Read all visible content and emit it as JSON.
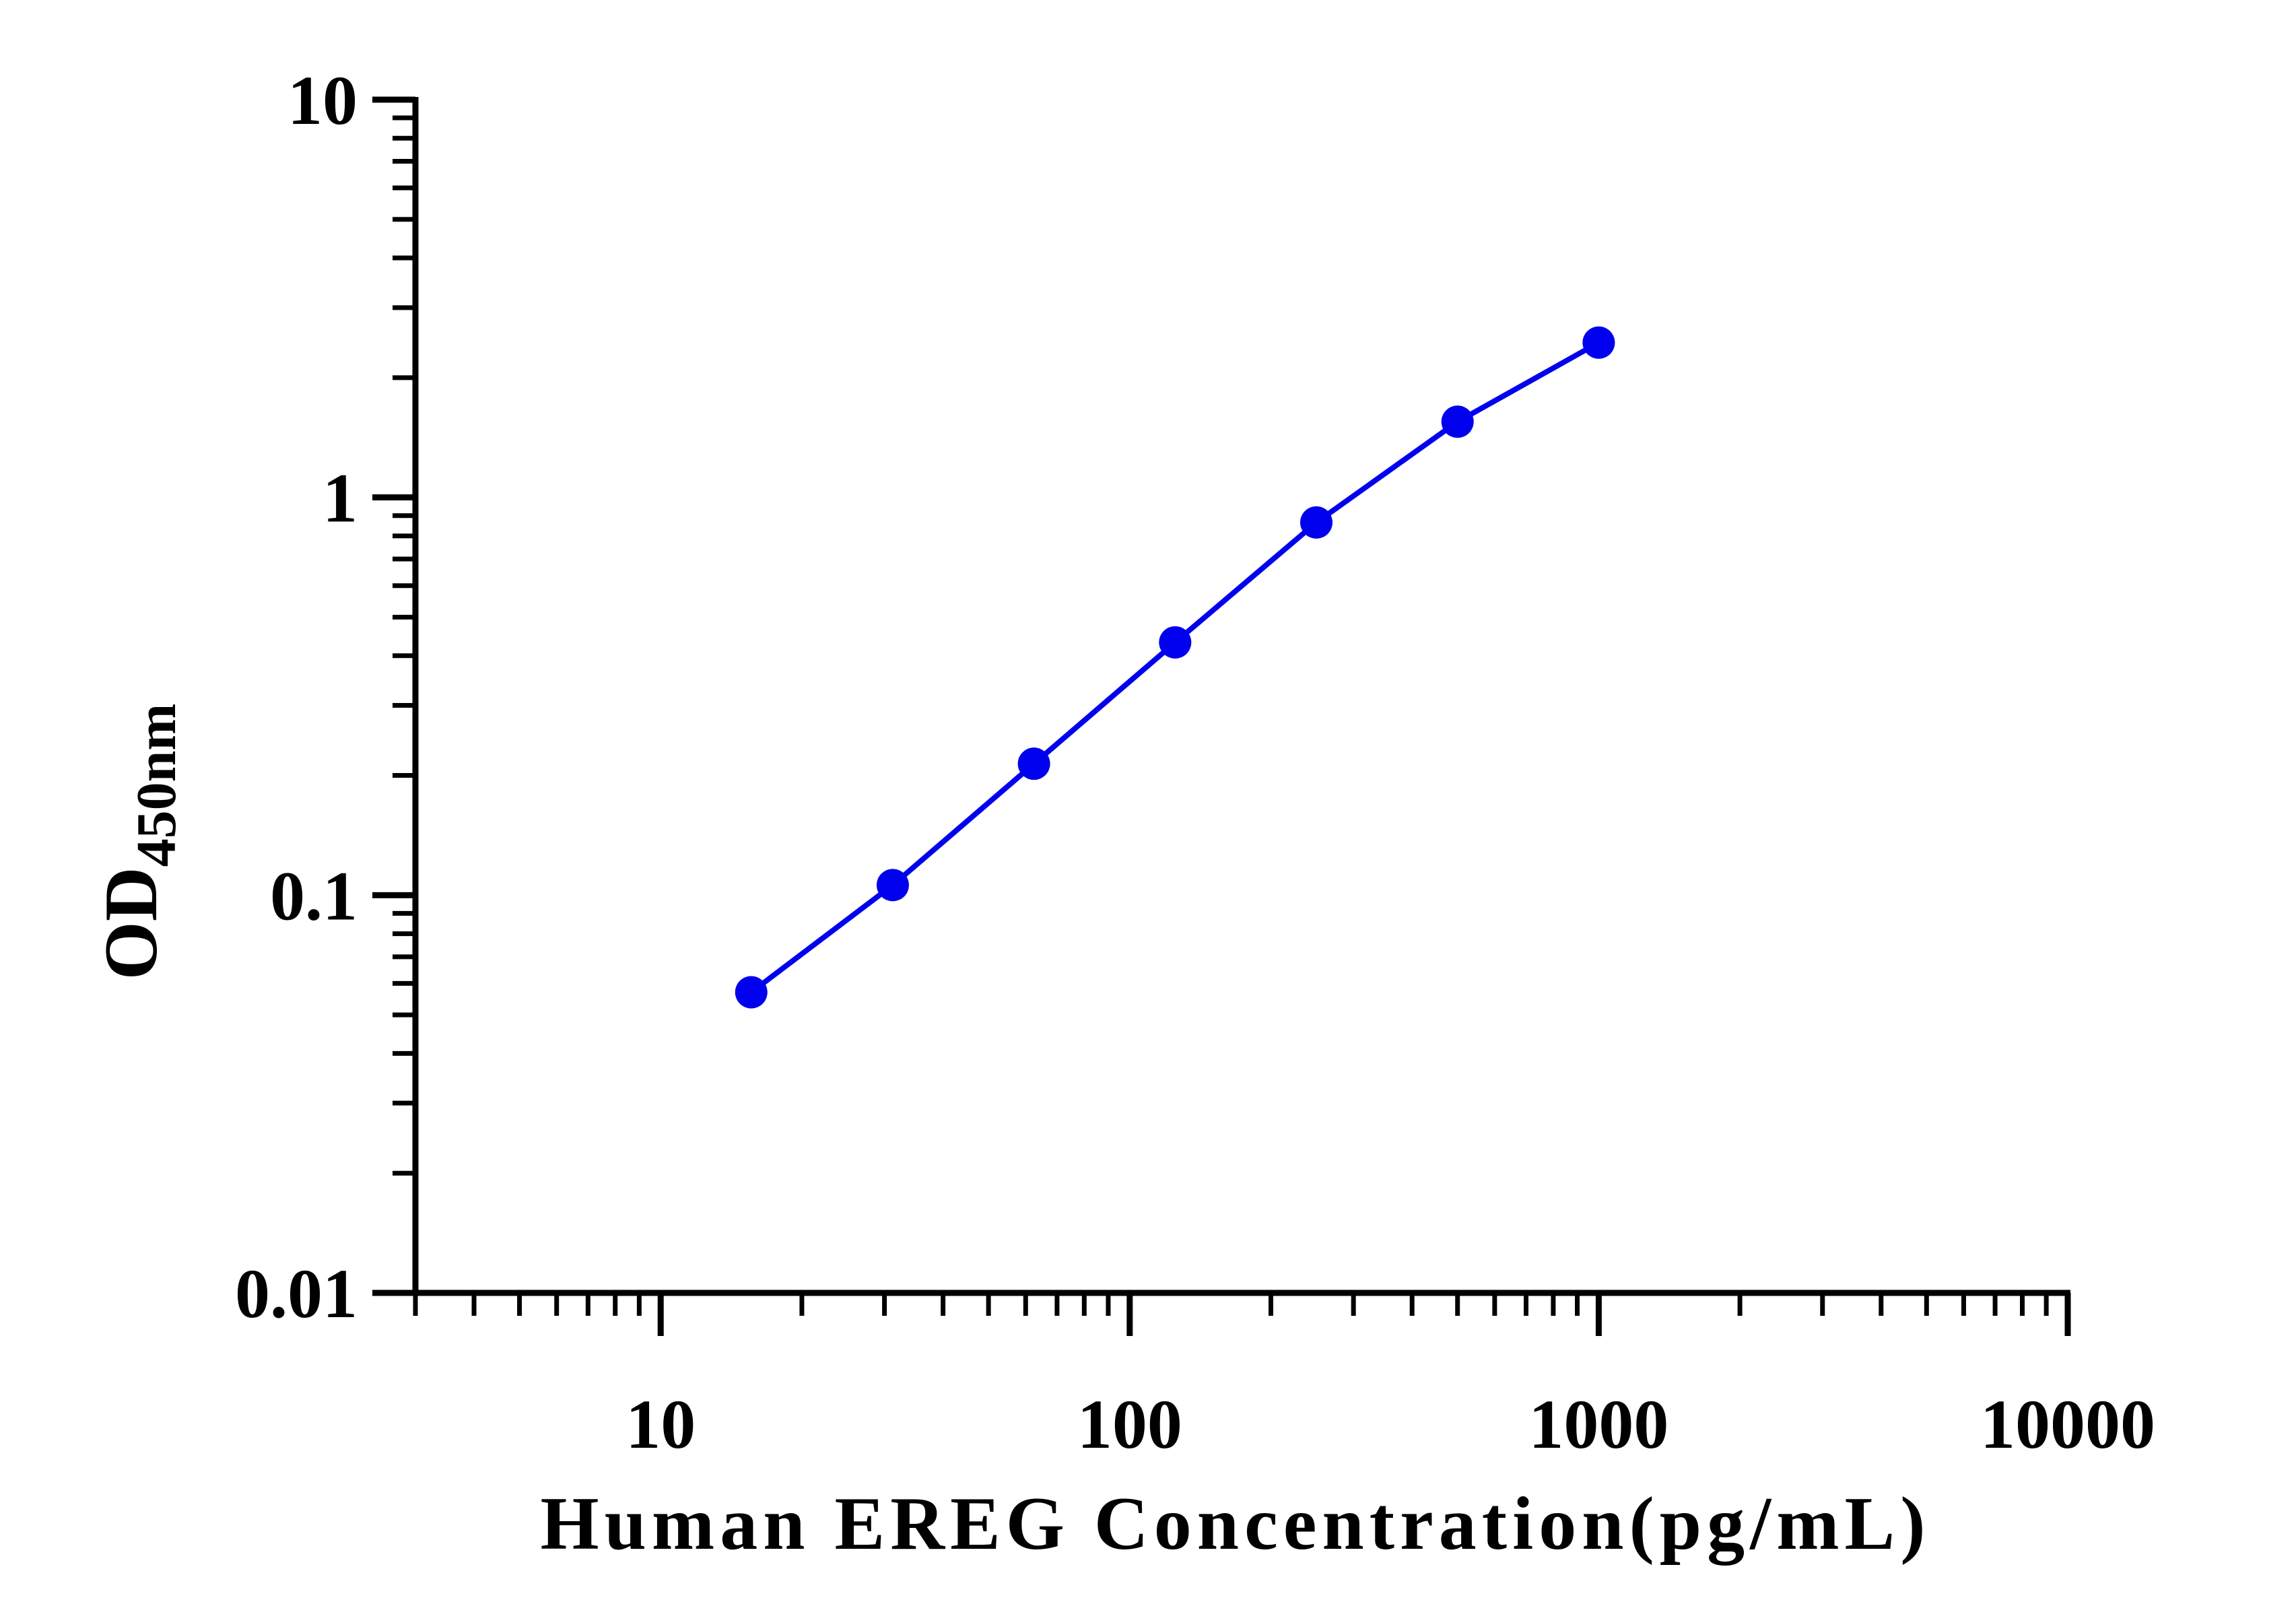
{
  "chart_data": {
    "type": "line",
    "x_scale": "log",
    "y_scale": "log",
    "xlim": [
      3,
      10000
    ],
    "ylim": [
      0.01,
      10
    ],
    "x_ticks": [
      "10",
      "100",
      "1000",
      "10000"
    ],
    "y_ticks": [
      "0.01",
      "0.1",
      "1",
      "10"
    ],
    "x_tick_values": [
      10,
      100,
      1000,
      10000
    ],
    "y_tick_values": [
      0.01,
      0.1,
      1,
      10
    ],
    "xlabel": "Human EREG Concentration(pg/mL)",
    "ylabel_main": "OD",
    "ylabel_sub": "450nm",
    "grid": false,
    "legend": "none",
    "series": [
      {
        "color": "#0000ee",
        "x": [
          15.6,
          31.25,
          62.5,
          125,
          250,
          500,
          1000
        ],
        "y": [
          0.057,
          0.106,
          0.214,
          0.432,
          0.865,
          1.55,
          2.45
        ]
      }
    ]
  }
}
